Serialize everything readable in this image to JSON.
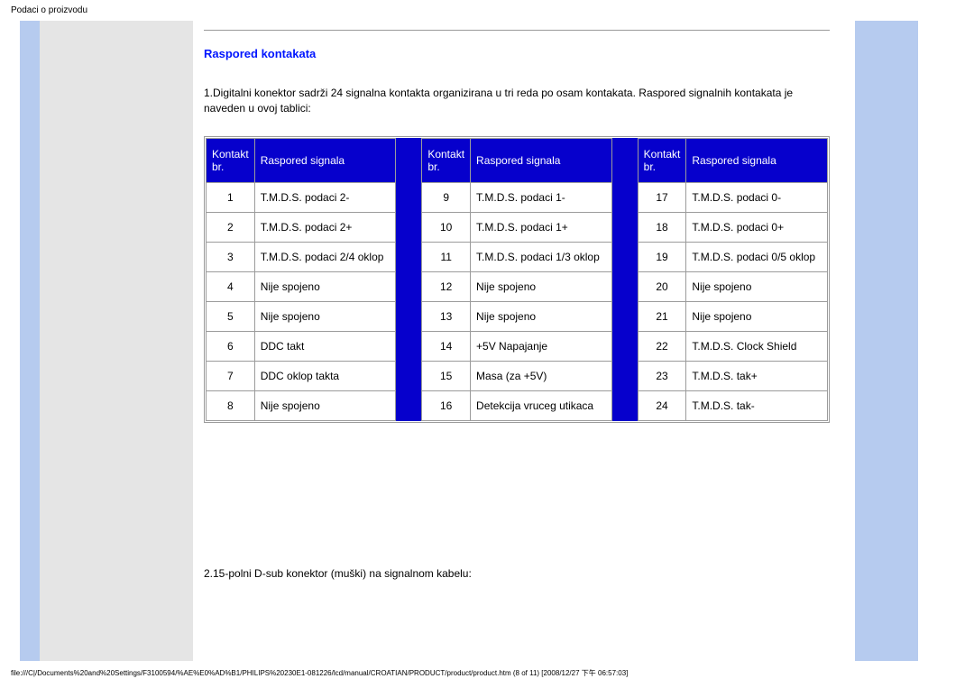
{
  "page_title": "Podaci o proizvodu",
  "section_title": "Raspored kontakata",
  "intro": "1.Digitalni konektor sadrži 24 signalna kontakta organizirana u tri reda po osam kontakata. Raspored signalnih kontakata je naveden u ovoj tablici:",
  "headers": {
    "kontakt": "Kontakt br.",
    "raspored": "Raspored signala"
  },
  "col1": [
    {
      "n": "1",
      "s": "T.M.D.S. podaci 2-"
    },
    {
      "n": "2",
      "s": "T.M.D.S. podaci 2+"
    },
    {
      "n": "3",
      "s": "T.M.D.S. podaci 2/4 oklop"
    },
    {
      "n": "4",
      "s": "Nije spojeno"
    },
    {
      "n": "5",
      "s": "Nije spojeno"
    },
    {
      "n": "6",
      "s": "DDC takt"
    },
    {
      "n": "7",
      "s": "DDC oklop takta"
    },
    {
      "n": "8",
      "s": "Nije spojeno"
    }
  ],
  "col2": [
    {
      "n": "9",
      "s": "T.M.D.S. podaci 1-"
    },
    {
      "n": "10",
      "s": "T.M.D.S. podaci 1+"
    },
    {
      "n": "11",
      "s": "T.M.D.S. podaci 1/3 oklop"
    },
    {
      "n": "12",
      "s": "Nije spojeno"
    },
    {
      "n": "13",
      "s": "Nije spojeno"
    },
    {
      "n": "14",
      "s": "+5V Napajanje"
    },
    {
      "n": "15",
      "s": "Masa (za +5V)"
    },
    {
      "n": "16",
      "s": "Detekcija vruceg utikaca"
    }
  ],
  "col3": [
    {
      "n": "17",
      "s": "T.M.D.S. podaci 0-"
    },
    {
      "n": "18",
      "s": "T.M.D.S. podaci 0+"
    },
    {
      "n": "19",
      "s": "T.M.D.S. podaci 0/5 oklop"
    },
    {
      "n": "20",
      "s": "Nije spojeno"
    },
    {
      "n": "21",
      "s": "Nije spojeno"
    },
    {
      "n": "22",
      "s": "T.M.D.S. Clock Shield"
    },
    {
      "n": "23",
      "s": "T.M.D.S. tak+"
    },
    {
      "n": "24",
      "s": "T.M.D.S. tak-"
    }
  ],
  "footnote": "2.15-polni D-sub konektor (muški) na signalnom kabelu:",
  "footer_path": "file:///C|/Documents%20and%20Settings/F3100594/%AE%E0%AD%B1/PHILIPS%20230E1-081226/lcd/manual/CROATIAN/PRODUCT/product/product.htm (8 of 11) [2008/12/27 下午 06:57:03]",
  "colors": {
    "header_bg": "#0600cc",
    "header_text": "#ffffff",
    "border": "#9b9b9b",
    "sidebar": "#b6cbef",
    "gray_bg": "#e5e5e5",
    "title_color": "#0015ff"
  }
}
